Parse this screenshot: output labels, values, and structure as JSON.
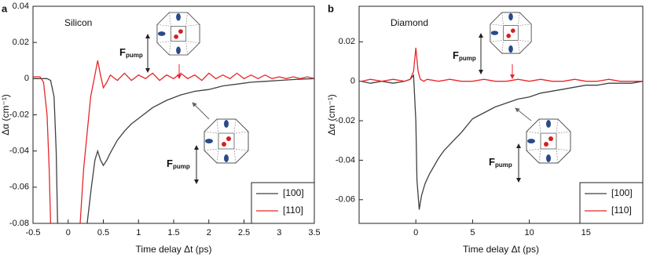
{
  "chart_data": [
    {
      "type": "line",
      "panel_label": "a",
      "annotation": "Silicon",
      "xlabel": "Time delay Δt (ps)",
      "ylabel": "Δα (cm⁻¹)",
      "pump_label": {
        "main": "F",
        "sub": "pump"
      },
      "xlim": [
        -0.5,
        3.5
      ],
      "xticks": [
        -0.5,
        0,
        0.5,
        1,
        1.5,
        2,
        2.5,
        3,
        3.5
      ],
      "ylim": [
        -0.08,
        0.04
      ],
      "yticks": [
        -0.08,
        -0.06,
        -0.04,
        -0.02,
        0,
        0.02,
        0.04
      ],
      "legend": "lower right",
      "series": [
        {
          "name": "[100]",
          "color": "#404040",
          "x": [
            -0.5,
            -0.4,
            -0.3,
            -0.25,
            -0.2,
            -0.17,
            -0.15,
            0,
            0.27,
            0.33,
            0.38,
            0.42,
            0.46,
            0.5,
            0.55,
            0.6,
            0.7,
            0.8,
            0.9,
            1.0,
            1.2,
            1.4,
            1.6,
            1.8,
            2.0,
            2.2,
            2.4,
            2.6,
            2.8,
            3.0,
            3.2,
            3.5
          ],
          "values": [
            0,
            0,
            0,
            -0.001,
            -0.01,
            -0.04,
            -0.08,
            null,
            -0.08,
            -0.06,
            -0.045,
            -0.04,
            -0.045,
            -0.048,
            -0.045,
            -0.041,
            -0.034,
            -0.029,
            -0.025,
            -0.022,
            -0.016,
            -0.012,
            -0.009,
            -0.007,
            -0.006,
            -0.004,
            -0.003,
            -0.002,
            -0.0015,
            -0.001,
            -0.0005,
            0
          ]
        },
        {
          "name": "[110]",
          "color": "#e8262b",
          "x": [
            -0.5,
            -0.4,
            -0.35,
            -0.3,
            -0.27,
            -0.25,
            0,
            0.17,
            0.22,
            0.27,
            0.32,
            0.37,
            0.42,
            0.46,
            0.5,
            0.55,
            0.6,
            0.7,
            0.8,
            0.9,
            1.0,
            1.1,
            1.2,
            1.3,
            1.4,
            1.5,
            1.6,
            1.7,
            1.8,
            1.9,
            2.0,
            2.1,
            2.2,
            2.3,
            2.4,
            2.5,
            2.6,
            2.7,
            2.8,
            2.9,
            3.0,
            3.1,
            3.2,
            3.3,
            3.4,
            3.5
          ],
          "values": [
            0.001,
            0.001,
            -0.002,
            -0.02,
            -0.05,
            -0.08,
            null,
            -0.08,
            -0.05,
            -0.03,
            -0.01,
            0,
            0.01,
            0.002,
            -0.005,
            -0.002,
            0.002,
            -0.001,
            0.003,
            -0.001,
            0.002,
            0,
            0.003,
            -0.001,
            0.002,
            0,
            0.003,
            0,
            0.002,
            -0.001,
            0.003,
            0,
            0.002,
            0,
            0.003,
            0,
            0.002,
            0,
            0.002,
            0,
            0.001,
            0,
            0.001,
            0,
            0.001,
            0
          ]
        }
      ]
    },
    {
      "type": "line",
      "panel_label": "b",
      "annotation": "Diamond",
      "xlabel": "Time delay Δt (ps)",
      "ylabel": "Δα (cm⁻¹)",
      "pump_label": {
        "main": "F",
        "sub": "pump"
      },
      "xlim": [
        -5,
        20
      ],
      "xticks": [
        0,
        5,
        10,
        15
      ],
      "ylim": [
        -0.072,
        0.038
      ],
      "yticks": [
        -0.06,
        -0.04,
        -0.02,
        0,
        0.02
      ],
      "legend": "lower right",
      "series": [
        {
          "name": "[100]",
          "color": "#404040",
          "x": [
            -4.8,
            -4,
            -3,
            -2,
            -1,
            -0.5,
            -0.2,
            0,
            0.1,
            0.3,
            0.5,
            0.8,
            1.2,
            1.6,
            2,
            2.5,
            3,
            3.5,
            4,
            5,
            6,
            7,
            8,
            9,
            10,
            11,
            12,
            13,
            14,
            15,
            16,
            17,
            18,
            19,
            20
          ],
          "values": [
            0,
            -0.001,
            0,
            -0.001,
            0,
            0.001,
            0.003,
            -0.02,
            -0.05,
            -0.065,
            -0.058,
            -0.052,
            -0.047,
            -0.043,
            -0.039,
            -0.035,
            -0.032,
            -0.029,
            -0.026,
            -0.019,
            -0.016,
            -0.013,
            -0.011,
            -0.009,
            -0.008,
            -0.006,
            -0.005,
            -0.004,
            -0.003,
            -0.002,
            -0.002,
            -0.001,
            -0.001,
            -0.001,
            0
          ]
        },
        {
          "name": "[110]",
          "color": "#e8262b",
          "x": [
            -4.8,
            -4,
            -3,
            -2,
            -1,
            -0.5,
            -0.2,
            0,
            0.2,
            0.4,
            0.7,
            1,
            2,
            3,
            4,
            5,
            6,
            7,
            8,
            9,
            10,
            11,
            12,
            13,
            14,
            15,
            16,
            17,
            18,
            19,
            20
          ],
          "values": [
            0,
            0.001,
            0,
            0.001,
            0,
            0.001,
            0.005,
            0.017,
            0.005,
            0.001,
            0,
            0.001,
            0,
            0.001,
            0,
            0,
            0.001,
            0,
            0,
            0.001,
            0,
            0.001,
            0,
            0,
            0.001,
            0,
            0,
            0.001,
            0,
            0,
            0
          ]
        }
      ]
    }
  ]
}
